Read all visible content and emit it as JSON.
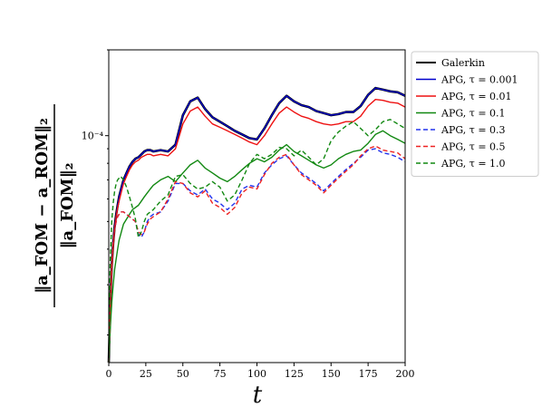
{
  "chart_data": {
    "type": "line",
    "xlabel": "t",
    "ylabel": {
      "numerator": "‖a_FOM − a_ROM‖₂",
      "denominator": "‖a_FOM‖₂"
    },
    "xlim": [
      0,
      200
    ],
    "ylim": [
      1.6e-05,
      0.0002
    ],
    "yscale": "log",
    "xticks": [
      0,
      25,
      50,
      75,
      100,
      125,
      150,
      175,
      200
    ],
    "ytick_labels": [
      {
        "value": 0.0001,
        "label": "10⁻⁴"
      }
    ],
    "legend_position": "outside-upper-right",
    "x": [
      0,
      1,
      2,
      3,
      4,
      5,
      6,
      7,
      8,
      9,
      10,
      12,
      14,
      16,
      18,
      20,
      22,
      24,
      26,
      28,
      30,
      35,
      40,
      45,
      50,
      55,
      60,
      65,
      70,
      75,
      80,
      85,
      90,
      95,
      100,
      105,
      110,
      115,
      120,
      125,
      130,
      135,
      140,
      145,
      150,
      155,
      160,
      165,
      170,
      175,
      180,
      185,
      190,
      195,
      200
    ],
    "series": [
      {
        "name": "Galerkin",
        "color": "#000000",
        "dash": "solid",
        "width": 2.6,
        "values": [
          1.6e-05,
          2.6e-05,
          3.5e-05,
          4.2e-05,
          4.8e-05,
          5.3e-05,
          5.7e-05,
          6.1e-05,
          6.4e-05,
          6.7e-05,
          7e-05,
          7.4e-05,
          7.8e-05,
          8.1e-05,
          8.3e-05,
          8.4e-05,
          8.6e-05,
          8.8e-05,
          8.9e-05,
          8.9e-05,
          8.8e-05,
          8.9e-05,
          8.8e-05,
          9.3e-05,
          0.000118,
          0.000132,
          0.000136,
          0.000124,
          0.000116,
          0.000112,
          0.000108,
          0.000104,
          0.000101,
          9.8e-05,
          9.7e-05,
          0.000106,
          0.000118,
          0.00013,
          0.000138,
          0.000132,
          0.000128,
          0.000126,
          0.000122,
          0.00012,
          0.000118,
          0.000119,
          0.000121,
          0.000121,
          0.000127,
          0.000139,
          0.000147,
          0.000145,
          0.000143,
          0.000142,
          0.000138
        ]
      },
      {
        "name": "APG, τ = 0.001",
        "color": "#0000cc",
        "dash": "solid",
        "width": 1.4,
        "values": [
          1.6e-05,
          2.6e-05,
          3.5e-05,
          4.2e-05,
          4.8e-05,
          5.3e-05,
          5.7e-05,
          6.1e-05,
          6.4e-05,
          6.7e-05,
          7e-05,
          7.4e-05,
          7.8e-05,
          8.1e-05,
          8.3e-05,
          8.4e-05,
          8.6e-05,
          8.8e-05,
          8.9e-05,
          8.9e-05,
          8.8e-05,
          8.9e-05,
          8.8e-05,
          9.3e-05,
          0.000118,
          0.000132,
          0.000136,
          0.000124,
          0.000116,
          0.000112,
          0.000108,
          0.000104,
          0.000101,
          9.8e-05,
          9.7e-05,
          0.000106,
          0.000118,
          0.00013,
          0.000138,
          0.000132,
          0.000128,
          0.000126,
          0.000122,
          0.00012,
          0.000118,
          0.000119,
          0.000121,
          0.000121,
          0.000127,
          0.000139,
          0.000147,
          0.000145,
          0.000143,
          0.000142,
          0.000138
        ]
      },
      {
        "name": "APG, τ = 0.01",
        "color": "#ee1111",
        "dash": "solid",
        "width": 1.4,
        "values": [
          1.6e-05,
          2.5e-05,
          3.4e-05,
          4.1e-05,
          4.7e-05,
          5.2e-05,
          5.6e-05,
          5.9e-05,
          6.2e-05,
          6.5e-05,
          6.8e-05,
          7.2e-05,
          7.6e-05,
          7.9e-05,
          8.1e-05,
          8.2e-05,
          8.4e-05,
          8.5e-05,
          8.6e-05,
          8.6e-05,
          8.5e-05,
          8.6e-05,
          8.5e-05,
          9e-05,
          0.00011,
          0.000122,
          0.000126,
          0.000117,
          0.00011,
          0.000107,
          0.000104,
          0.000101,
          9.8e-05,
          9.5e-05,
          9.3e-05,
          0.0001,
          0.00011,
          0.00012,
          0.000126,
          0.000121,
          0.000117,
          0.000115,
          0.000112,
          0.00011,
          0.000109,
          0.00011,
          0.000112,
          0.000112,
          0.000117,
          0.000127,
          0.000134,
          0.000133,
          0.000131,
          0.00013,
          0.000126
        ]
      },
      {
        "name": "APG, τ = 0.1",
        "color": "#118811",
        "dash": "solid",
        "width": 1.4,
        "values": [
          1.6e-05,
          2.1e-05,
          2.6e-05,
          3e-05,
          3.4e-05,
          3.7e-05,
          4e-05,
          4.3e-05,
          4.5e-05,
          4.7e-05,
          4.9e-05,
          5.1e-05,
          5.3e-05,
          5.5e-05,
          5.6e-05,
          5.7e-05,
          5.9e-05,
          6.1e-05,
          6.3e-05,
          6.5e-05,
          6.7e-05,
          7e-05,
          7.2e-05,
          6.9e-05,
          7.4e-05,
          7.9e-05,
          8.2e-05,
          7.7e-05,
          7.4e-05,
          7.1e-05,
          6.9e-05,
          7.2e-05,
          7.6e-05,
          8e-05,
          8.3e-05,
          8.1e-05,
          8.4e-05,
          8.9e-05,
          9.3e-05,
          8.8e-05,
          8.5e-05,
          8.2e-05,
          7.9e-05,
          7.7e-05,
          7.9e-05,
          8.3e-05,
          8.6e-05,
          8.8e-05,
          8.9e-05,
          9.4e-05,
          0.000101,
          0.000104,
          0.0001,
          9.7e-05,
          9.4e-05
        ]
      },
      {
        "name": "APG, τ = 0.3",
        "color": "#2233ee",
        "dash": "dashed",
        "width": 1.4,
        "values": [
          1.6e-05,
          2.7e-05,
          3.6e-05,
          4.2e-05,
          4.7e-05,
          5e-05,
          5.2e-05,
          5.3e-05,
          5.4e-05,
          5.4e-05,
          5.4e-05,
          5.3e-05,
          5.2e-05,
          5.1e-05,
          5e-05,
          4.5e-05,
          4.4e-05,
          4.6e-05,
          5e-05,
          5.2e-05,
          5.3e-05,
          5.4e-05,
          5.9e-05,
          6.8e-05,
          6.8e-05,
          6.4e-05,
          6.2e-05,
          6.5e-05,
          6e-05,
          5.8e-05,
          5.5e-05,
          5.8e-05,
          6.5e-05,
          6.7e-05,
          6.6e-05,
          7.4e-05,
          7.9e-05,
          8.3e-05,
          8.5e-05,
          7.9e-05,
          7.4e-05,
          7.1e-05,
          6.8e-05,
          6.4e-05,
          6.8e-05,
          7.2e-05,
          7.6e-05,
          8e-05,
          8.4e-05,
          8.9e-05,
          9e-05,
          8.7e-05,
          8.6e-05,
          8.4e-05,
          8.1e-05
        ]
      },
      {
        "name": "APG, τ = 0.5",
        "color": "#ee2222",
        "dash": "dashed",
        "width": 1.4,
        "values": [
          1.6e-05,
          2.7e-05,
          3.6e-05,
          4.2e-05,
          4.7e-05,
          5e-05,
          5.2e-05,
          5.3e-05,
          5.4e-05,
          5.4e-05,
          5.4e-05,
          5.3e-05,
          5.2e-05,
          5.1e-05,
          5e-05,
          4.6e-05,
          4.5e-05,
          4.6e-05,
          4.9e-05,
          5.1e-05,
          5.2e-05,
          5.4e-05,
          6e-05,
          6.9e-05,
          6.8e-05,
          6.3e-05,
          6.1e-05,
          6.4e-05,
          5.8e-05,
          5.6e-05,
          5.3e-05,
          5.6e-05,
          6.3e-05,
          6.6e-05,
          6.5e-05,
          7.3e-05,
          8e-05,
          8.4e-05,
          8.6e-05,
          7.9e-05,
          7.3e-05,
          7e-05,
          6.7e-05,
          6.3e-05,
          6.7e-05,
          7.1e-05,
          7.5e-05,
          7.9e-05,
          8.5e-05,
          9e-05,
          9.2e-05,
          8.9e-05,
          8.8e-05,
          8.7e-05,
          8.3e-05
        ]
      },
      {
        "name": "APG, τ = 1.0",
        "color": "#118811",
        "dash": "dashed",
        "width": 1.4,
        "values": [
          1.6e-05,
          3.6e-05,
          5e-05,
          5.8e-05,
          6.4e-05,
          6.8e-05,
          7e-05,
          7.1e-05,
          7.2e-05,
          7.1e-05,
          7e-05,
          6.6e-05,
          6.1e-05,
          5.6e-05,
          5.1e-05,
          4.4e-05,
          4.6e-05,
          5e-05,
          5.3e-05,
          5.4e-05,
          5.5e-05,
          5.9e-05,
          6.2e-05,
          7.2e-05,
          7.3e-05,
          6.8e-05,
          6.5e-05,
          6.6e-05,
          6.9e-05,
          6.6e-05,
          5.9e-05,
          6.2e-05,
          7e-05,
          8e-05,
          8.6e-05,
          8.3e-05,
          8.6e-05,
          9.1e-05,
          9e-05,
          8.5e-05,
          8.9e-05,
          8.4e-05,
          7.9e-05,
          8.3e-05,
          9.6e-05,
          0.000103,
          0.000108,
          0.000112,
          0.000106,
          0.0001,
          0.000105,
          0.000112,
          0.000114,
          0.00011,
          0.000106
        ]
      }
    ]
  }
}
